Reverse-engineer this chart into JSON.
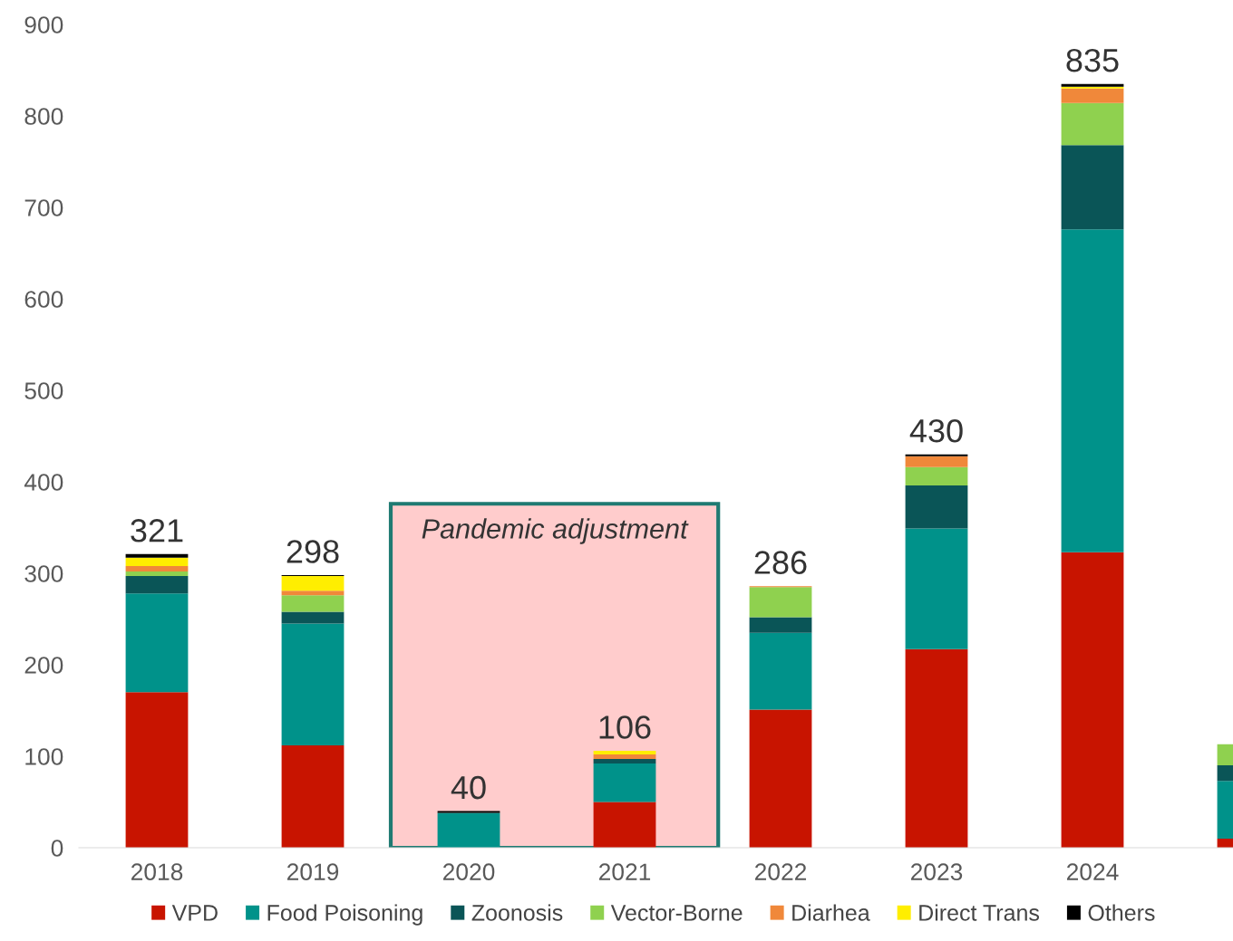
{
  "chart_data": {
    "type": "bar",
    "stacked": true,
    "categories": [
      "2018",
      "2019",
      "2020",
      "2021",
      "2022",
      "2023",
      "2024",
      null
    ],
    "series": [
      {
        "name": "VPD",
        "color": "#c81400",
        "values": [
          170,
          112,
          0,
          50,
          151,
          217,
          323,
          10
        ]
      },
      {
        "name": "Food Poisoning",
        "color": "#00928a",
        "values": [
          108,
          133,
          38,
          42,
          84,
          132,
          353,
          63
        ]
      },
      {
        "name": "Zoonosis",
        "color": "#0a5557",
        "values": [
          19,
          13,
          0,
          5,
          17,
          47,
          92,
          17
        ]
      },
      {
        "name": "Vector-Borne",
        "color": "#8fd14f",
        "values": [
          5,
          18,
          0,
          0,
          33,
          20,
          46,
          23
        ]
      },
      {
        "name": "Diarhea",
        "color": "#f0883a",
        "values": [
          6,
          5,
          0,
          5,
          1,
          12,
          16,
          0
        ]
      },
      {
        "name": "Direct Trans",
        "color": "#ffee00",
        "values": [
          9,
          16,
          0,
          4,
          0,
          0,
          2,
          0
        ]
      },
      {
        "name": "Others",
        "color": "#000000",
        "values": [
          4,
          1,
          2,
          0,
          0,
          2,
          3,
          0
        ]
      }
    ],
    "totals": [
      "321",
      "298",
      "40",
      "106",
      "286",
      "430",
      "835",
      null
    ],
    "ylim": [
      0,
      900
    ],
    "yticks": [
      0,
      100,
      200,
      300,
      400,
      500,
      600,
      700,
      800,
      900
    ],
    "bands": [
      {
        "axis": "x",
        "from": "2020",
        "to": "2021",
        "label": "Pandemic adjustment",
        "color": "#ffcccc"
      }
    ],
    "grid": false,
    "legend": "bottom"
  }
}
